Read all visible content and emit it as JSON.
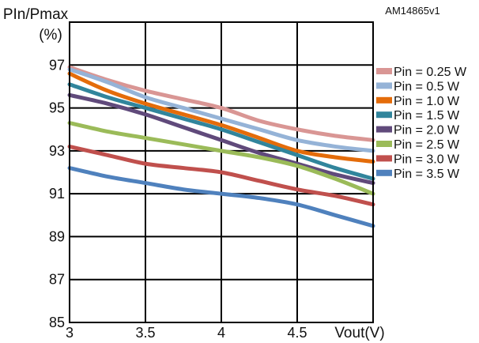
{
  "chart_data": {
    "type": "line",
    "figure_code": "AM14865v1",
    "ylabel_line1": "PIn/Pmax",
    "ylabel_line2": "(%)",
    "xlabel": "Vout(V)",
    "xlim": [
      3,
      5
    ],
    "ylim": [
      85,
      99
    ],
    "x_ticks": [
      "3",
      "3.5",
      "4",
      "4.5"
    ],
    "y_ticks": [
      "85",
      "87",
      "89",
      "91",
      "93",
      "95",
      "97"
    ],
    "grid": true,
    "legend_position": "right",
    "series": [
      {
        "name": "Pin = 0.25 W",
        "color": "#d99694",
        "x": [
          3,
          3.25,
          3.5,
          3.75,
          4,
          4.25,
          4.5,
          4.75,
          5
        ],
        "y": [
          96.9,
          96.3,
          95.8,
          95.4,
          95.0,
          94.4,
          94.0,
          93.7,
          93.5
        ]
      },
      {
        "name": "Pin = 0.5 W",
        "color": "#95b3d7",
        "x": [
          3,
          3.25,
          3.5,
          3.75,
          4,
          4.25,
          4.5,
          4.75,
          5
        ],
        "y": [
          96.8,
          96.2,
          95.5,
          95.0,
          94.5,
          94.0,
          93.5,
          93.2,
          93.0
        ]
      },
      {
        "name": "Pin = 1.0 W",
        "color": "#e46c0a",
        "x": [
          3,
          3.25,
          3.5,
          3.75,
          4,
          4.25,
          4.5,
          4.75,
          5
        ],
        "y": [
          96.6,
          95.8,
          95.2,
          94.7,
          94.2,
          93.6,
          93.0,
          92.7,
          92.5
        ]
      },
      {
        "name": "Pin = 1.5 W",
        "color": "#31859c",
        "x": [
          3,
          3.25,
          3.5,
          3.75,
          4,
          4.25,
          4.5,
          4.75,
          5
        ],
        "y": [
          96.1,
          95.5,
          95.0,
          94.5,
          94.0,
          93.4,
          92.8,
          92.2,
          91.7
        ]
      },
      {
        "name": "Pin = 2.0 W",
        "color": "#604a7b",
        "x": [
          3,
          3.25,
          3.5,
          3.75,
          4,
          4.25,
          4.5,
          4.75,
          5
        ],
        "y": [
          95.6,
          95.2,
          94.7,
          94.1,
          93.5,
          92.9,
          92.4,
          91.9,
          91.5
        ]
      },
      {
        "name": "Pin = 2.5 W",
        "color": "#9bbb59",
        "x": [
          3,
          3.25,
          3.5,
          3.75,
          4,
          4.25,
          4.5,
          4.75,
          5
        ],
        "y": [
          94.3,
          93.9,
          93.6,
          93.3,
          93.0,
          92.7,
          92.3,
          91.7,
          91.0
        ]
      },
      {
        "name": "Pin = 3.0 W",
        "color": "#c0504d",
        "x": [
          3,
          3.25,
          3.5,
          3.75,
          4,
          4.25,
          4.5,
          4.75,
          5
        ],
        "y": [
          93.2,
          92.8,
          92.4,
          92.2,
          92.0,
          91.6,
          91.2,
          90.9,
          90.5
        ]
      },
      {
        "name": "Pin = 3.5 W",
        "color": "#4f81bd",
        "x": [
          3,
          3.25,
          3.5,
          3.75,
          4,
          4.25,
          4.5,
          4.75,
          5
        ],
        "y": [
          92.2,
          91.8,
          91.5,
          91.2,
          91.0,
          90.8,
          90.5,
          90.0,
          89.5
        ]
      }
    ]
  }
}
